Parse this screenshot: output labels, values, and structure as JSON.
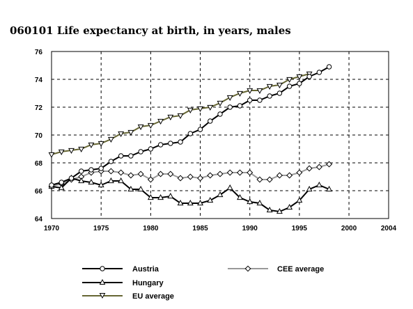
{
  "chart_data": {
    "type": "line",
    "title": "060101 Life expectancy at birth, in years, males",
    "xlabel": "",
    "ylabel": "",
    "xlim": [
      1970,
      2004
    ],
    "ylim": [
      64,
      76
    ],
    "xticks": [
      1970,
      1975,
      1980,
      1985,
      1990,
      1995,
      2000,
      2004
    ],
    "yticks": [
      64,
      66,
      68,
      70,
      72,
      74,
      76
    ],
    "grid": true,
    "legend_position": "bottom",
    "x": [
      1970,
      1971,
      1972,
      1973,
      1974,
      1975,
      1976,
      1977,
      1978,
      1979,
      1980,
      1981,
      1982,
      1983,
      1984,
      1985,
      1986,
      1987,
      1988,
      1989,
      1990,
      1991,
      1992,
      1993,
      1994,
      1995,
      1996,
      1997,
      1998
    ],
    "series": [
      {
        "name": "Austria",
        "color": "#000000",
        "marker": "circle",
        "values": [
          66.4,
          66.6,
          66.9,
          67.4,
          67.5,
          67.6,
          68.1,
          68.5,
          68.5,
          68.8,
          69.0,
          69.3,
          69.4,
          69.5,
          70.1,
          70.4,
          71.0,
          71.5,
          72.0,
          72.1,
          72.5,
          72.5,
          72.8,
          73.0,
          73.5,
          73.7,
          74.2,
          74.5,
          74.9
        ]
      },
      {
        "name": "Hungary",
        "color": "#000000",
        "marker": "triangle-up",
        "values": [
          66.3,
          66.2,
          66.9,
          66.7,
          66.6,
          66.4,
          66.7,
          66.7,
          66.1,
          66.1,
          65.5,
          65.5,
          65.6,
          65.1,
          65.1,
          65.1,
          65.3,
          65.7,
          66.2,
          65.5,
          65.2,
          65.1,
          64.6,
          64.5,
          64.8,
          65.3,
          66.1,
          66.4,
          66.1
        ]
      },
      {
        "name": "EU average",
        "color": "#666633",
        "marker": "triangle-down",
        "values": [
          68.6,
          68.8,
          68.9,
          69.0,
          69.3,
          69.4,
          69.7,
          70.1,
          70.2,
          70.6,
          70.7,
          71.0,
          71.3,
          71.4,
          71.8,
          71.9,
          72.0,
          72.3,
          72.7,
          73.0,
          73.2,
          73.2,
          73.5,
          73.6,
          74.0,
          74.2,
          74.4,
          null,
          null
        ]
      },
      {
        "name": "CEE average",
        "color": "#999999",
        "marker": "diamond",
        "values": [
          66.3,
          66.5,
          66.8,
          67.0,
          67.3,
          67.4,
          67.4,
          67.3,
          67.1,
          67.2,
          66.8,
          67.2,
          67.2,
          66.9,
          67.0,
          66.9,
          67.1,
          67.2,
          67.3,
          67.3,
          67.3,
          66.8,
          66.8,
          67.1,
          67.1,
          67.3,
          67.6,
          67.7,
          67.9
        ]
      }
    ]
  }
}
